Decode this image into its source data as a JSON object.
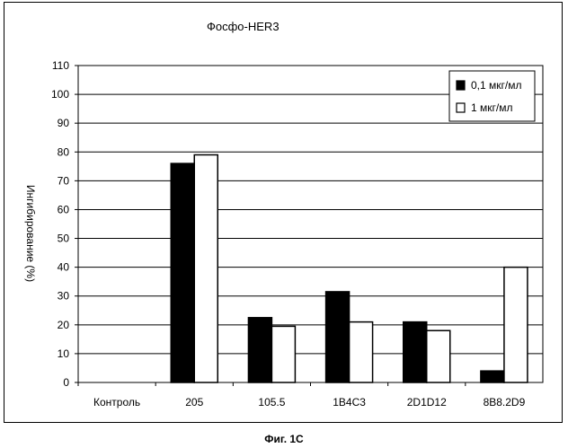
{
  "figure_caption": "Фиг. 1С",
  "chart_data": {
    "type": "bar",
    "title": "Фосфо-HER3",
    "xlabel": "",
    "ylabel": "Ингибирование (%)",
    "ylim": [
      0,
      110
    ],
    "yticks": [
      0,
      10,
      20,
      30,
      40,
      50,
      60,
      70,
      80,
      90,
      100,
      110
    ],
    "grid": true,
    "legend_position": "top-right",
    "categories": [
      "Контроль",
      "205",
      "105.5",
      "1B4C3",
      "2D1D12",
      "8B8.2D9"
    ],
    "series": [
      {
        "name": "0,1 мкг/мл",
        "color": "#000000",
        "values": [
          0,
          76,
          22.5,
          31.5,
          21,
          4
        ]
      },
      {
        "name": "1 мкг/мл",
        "color": "#ffffff",
        "values": [
          0,
          79,
          19.5,
          21,
          18,
          40
        ]
      }
    ]
  }
}
